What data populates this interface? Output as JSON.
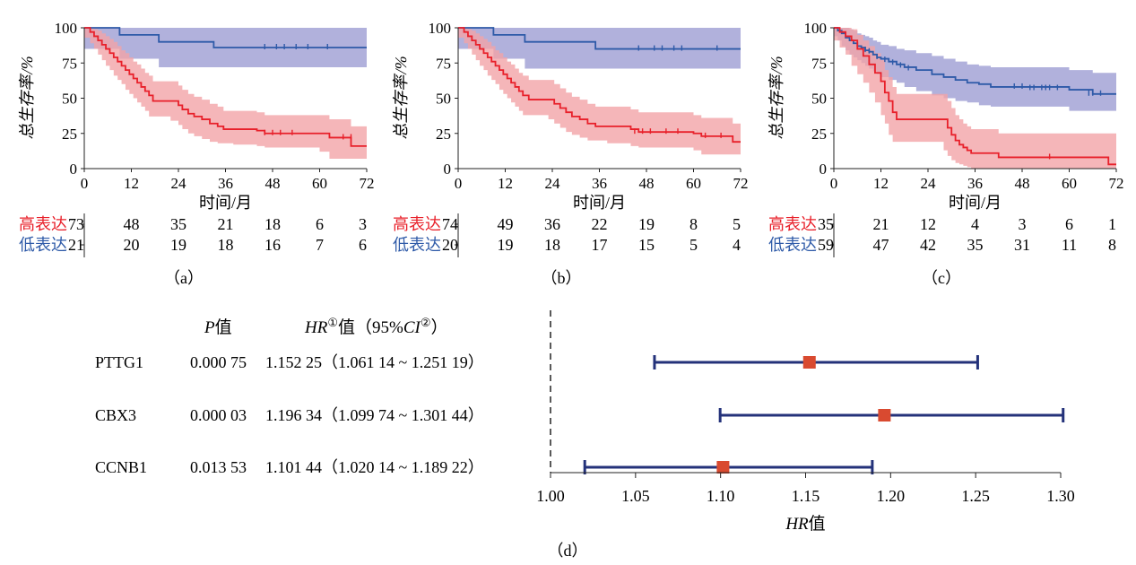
{
  "colors": {
    "high": "#e8202a",
    "high_band": "#f2a4a8",
    "low": "#2e5aa8",
    "low_band": "#a3a3d6",
    "forest_line": "#24327a",
    "forest_point": "#d94a30",
    "axis": "#222222"
  },
  "chart_data": [
    {
      "type": "line",
      "panel_label": "（a）",
      "xlabel": "时间/月",
      "ylabel": "总生存率/%",
      "xlim": [
        0,
        72
      ],
      "ylim": [
        0,
        100
      ],
      "xticks": [
        0,
        12,
        24,
        36,
        48,
        60,
        72
      ],
      "yticks": [
        0,
        25,
        50,
        75,
        100
      ],
      "series": [
        {
          "name": "高表达",
          "color": "high",
          "x": [
            0,
            1.5,
            2.5,
            3.5,
            4.5,
            5.5,
            6.5,
            7.5,
            8.5,
            9.5,
            10.5,
            11.5,
            12.5,
            13.5,
            14.5,
            15.5,
            16.5,
            17.5,
            22,
            24,
            25,
            26.5,
            28,
            30,
            32,
            34,
            35.5,
            38,
            44,
            46,
            60,
            62.5,
            68,
            72
          ],
          "y": [
            100,
            97,
            94,
            91,
            88,
            85,
            82,
            79,
            76,
            73,
            70,
            67,
            64,
            61,
            58,
            55,
            52,
            48,
            48,
            45,
            42,
            39,
            37,
            35,
            32,
            30,
            28,
            28,
            27,
            25,
            25,
            22,
            16,
            16
          ],
          "band_upper": [
            100,
            100,
            99,
            98,
            96,
            94,
            92,
            90,
            87,
            84,
            82,
            79,
            76,
            74,
            71,
            68,
            66,
            62,
            62,
            59,
            56,
            53,
            51,
            49,
            46,
            44,
            41,
            41,
            40,
            38,
            38,
            35,
            30,
            30
          ],
          "band_lower": [
            100,
            93,
            89,
            85,
            81,
            77,
            73,
            70,
            66,
            63,
            60,
            56,
            53,
            50,
            47,
            44,
            41,
            37,
            37,
            34,
            31,
            28,
            25,
            23,
            21,
            19,
            18,
            18,
            17,
            16,
            15,
            12,
            7,
            7
          ],
          "censors": [
            [
              46,
              25
            ],
            [
              48,
              25
            ],
            [
              50,
              25
            ],
            [
              53,
              25
            ],
            [
              66,
              22
            ],
            [
              68,
              22
            ]
          ]
        },
        {
          "name": "低表达",
          "color": "low",
          "x": [
            0,
            9,
            19,
            33,
            72
          ],
          "y": [
            100,
            95,
            90,
            86,
            86
          ],
          "band_upper": [
            100,
            100,
            100,
            100,
            100
          ],
          "band_lower": [
            100,
            85,
            78,
            72,
            72
          ],
          "censors": [
            [
              46,
              86
            ],
            [
              49,
              86
            ],
            [
              51,
              86
            ],
            [
              54,
              86
            ],
            [
              57,
              86
            ],
            [
              62,
              86
            ]
          ]
        }
      ],
      "risk_table": [
        {
          "name": "高表达",
          "color": "high",
          "values": [
            "73",
            "48",
            "35",
            "21",
            "18",
            "6",
            "3"
          ]
        },
        {
          "name": "低表达",
          "color": "low",
          "values": [
            "21",
            "20",
            "19",
            "18",
            "16",
            "7",
            "6"
          ]
        }
      ]
    },
    {
      "type": "line",
      "panel_label": "（b）",
      "xlabel": "时间/月",
      "ylabel": "总生存率/%",
      "xlim": [
        0,
        72
      ],
      "ylim": [
        0,
        100
      ],
      "xticks": [
        0,
        12,
        24,
        36,
        48,
        60,
        72
      ],
      "yticks": [
        0,
        25,
        50,
        75,
        100
      ],
      "series": [
        {
          "name": "高表达",
          "color": "high",
          "x": [
            0,
            1.5,
            2.5,
            3.5,
            4.5,
            5.5,
            6.5,
            7.5,
            8.5,
            9.5,
            10.5,
            11.5,
            12.5,
            13.5,
            14.5,
            15.5,
            16.5,
            18,
            23,
            24.5,
            26,
            27.5,
            29,
            31,
            33,
            35,
            38,
            44,
            46,
            60,
            62,
            70,
            72
          ],
          "y": [
            100,
            97,
            94,
            91,
            88,
            85,
            82,
            79,
            76,
            73,
            70,
            67,
            64,
            61,
            58,
            55,
            52,
            49,
            49,
            46,
            43,
            40,
            37,
            35,
            32,
            30,
            30,
            28,
            26,
            25,
            23,
            19,
            19
          ],
          "band_upper": [
            100,
            100,
            99,
            98,
            96,
            94,
            92,
            90,
            87,
            84,
            82,
            79,
            76,
            74,
            71,
            68,
            66,
            63,
            63,
            60,
            57,
            54,
            51,
            49,
            46,
            44,
            44,
            42,
            40,
            38,
            36,
            32,
            32
          ],
          "band_lower": [
            100,
            93,
            89,
            85,
            81,
            77,
            73,
            70,
            66,
            63,
            60,
            56,
            53,
            50,
            47,
            44,
            41,
            38,
            38,
            35,
            32,
            29,
            26,
            24,
            22,
            20,
            20,
            18,
            16,
            15,
            13,
            10,
            10
          ],
          "censors": [
            [
              45,
              26
            ],
            [
              47,
              26
            ],
            [
              49,
              26
            ],
            [
              53,
              26
            ],
            [
              56,
              26
            ],
            [
              63,
              23
            ],
            [
              67,
              23
            ]
          ]
        },
        {
          "name": "低表达",
          "color": "low",
          "x": [
            0,
            9,
            17,
            35,
            72
          ],
          "y": [
            100,
            95,
            90,
            85,
            85
          ],
          "band_upper": [
            100,
            100,
            100,
            100,
            100
          ],
          "band_lower": [
            100,
            85,
            78,
            71,
            71
          ],
          "censors": [
            [
              46,
              85
            ],
            [
              50,
              85
            ],
            [
              52,
              85
            ],
            [
              55,
              85
            ],
            [
              57,
              85
            ],
            [
              66,
              85
            ]
          ]
        }
      ],
      "risk_table": [
        {
          "name": "高表达",
          "color": "high",
          "values": [
            "74",
            "49",
            "36",
            "22",
            "19",
            "8",
            "5"
          ]
        },
        {
          "name": "低表达",
          "color": "low",
          "values": [
            "20",
            "19",
            "18",
            "17",
            "15",
            "5",
            "4"
          ]
        }
      ]
    },
    {
      "type": "line",
      "panel_label": "（c）",
      "xlabel": "时间/月",
      "ylabel": "总生存率/%",
      "xlim": [
        0,
        72
      ],
      "ylim": [
        0,
        100
      ],
      "xticks": [
        0,
        12,
        24,
        36,
        48,
        60,
        72
      ],
      "yticks": [
        0,
        25,
        50,
        75,
        100
      ],
      "series": [
        {
          "name": "高表达",
          "color": "high",
          "x": [
            0,
            1.5,
            3,
            4.5,
            6,
            7.5,
            9,
            10.5,
            12,
            13,
            14,
            15,
            16,
            28,
            29,
            30,
            31,
            32,
            33,
            34,
            35,
            42,
            60,
            62,
            70,
            72
          ],
          "y": [
            100,
            97,
            94,
            91,
            85,
            80,
            74,
            68,
            62,
            54,
            48,
            40,
            35,
            35,
            29,
            24,
            20,
            17,
            15,
            13,
            11,
            8,
            8,
            8,
            3,
            3
          ],
          "band_upper": [
            100,
            100,
            100,
            99,
            95,
            91,
            87,
            82,
            77,
            70,
            65,
            58,
            53,
            53,
            48,
            43,
            38,
            35,
            32,
            30,
            28,
            25,
            25,
            25,
            25,
            25
          ],
          "band_lower": [
            100,
            91,
            86,
            81,
            73,
            67,
            61,
            54,
            47,
            38,
            32,
            24,
            19,
            19,
            13,
            9,
            6,
            4,
            3,
            2,
            1,
            0,
            0,
            0,
            0,
            0
          ],
          "censors": [
            [
              55,
              8
            ]
          ]
        },
        {
          "name": "低表达",
          "color": "low",
          "x": [
            0,
            1,
            2,
            3,
            4,
            5,
            6,
            7,
            8,
            9,
            10,
            11,
            12,
            14,
            16,
            18,
            21,
            25,
            28,
            31,
            34,
            37,
            40,
            60,
            66,
            72
          ],
          "y": [
            100,
            98,
            96,
            93,
            91,
            89,
            87,
            86,
            84,
            83,
            81,
            79,
            78,
            76,
            74,
            72,
            70,
            67,
            65,
            63,
            61,
            60,
            58,
            56,
            53,
            53
          ],
          "band_upper": [
            100,
            100,
            100,
            100,
            99,
            98,
            96,
            95,
            94,
            93,
            91,
            90,
            88,
            87,
            85,
            84,
            82,
            80,
            78,
            76,
            74,
            73,
            72,
            70,
            68,
            68
          ],
          "band_lower": [
            100,
            94,
            91,
            87,
            84,
            81,
            79,
            77,
            75,
            73,
            71,
            69,
            67,
            65,
            63,
            61,
            58,
            55,
            52,
            50,
            48,
            47,
            45,
            44,
            41,
            41
          ],
          "censors": [
            [
              8,
              84
            ],
            [
              9,
              83
            ],
            [
              11,
              79
            ],
            [
              13,
              77
            ],
            [
              15,
              75
            ],
            [
              17,
              73
            ],
            [
              19,
              71
            ],
            [
              46,
              58
            ],
            [
              48,
              58
            ],
            [
              50,
              57
            ],
            [
              51,
              57
            ],
            [
              53,
              57
            ],
            [
              54,
              57
            ],
            [
              55,
              57
            ],
            [
              57,
              57
            ],
            [
              65,
              53
            ],
            [
              66,
              53
            ],
            [
              68,
              53
            ]
          ]
        }
      ],
      "risk_table": [
        {
          "name": "高表达",
          "color": "high",
          "values": [
            "35",
            "21",
            "12",
            "4",
            "3",
            "6",
            "1"
          ]
        },
        {
          "name": "低表达",
          "color": "low",
          "values": [
            "59",
            "47",
            "42",
            "35",
            "31",
            "11",
            "8"
          ]
        }
      ]
    },
    {
      "type": "scatter",
      "panel_label": "（d）",
      "xlabel_italic": "HR",
      "xlabel_suffix": "值",
      "xlim": [
        1.0,
        1.3
      ],
      "xticks": [
        "1.00",
        "1.05",
        "1.10",
        "1.15",
        "1.20",
        "1.25",
        "1.30"
      ],
      "reference_x": 1.0,
      "header_p_italic": "P",
      "header_p_suffix": "值",
      "header_hr_italic": "HR",
      "header_hr_sup1": "①",
      "header_hr_mid": "值（95%",
      "header_hr_ci_italic": "CI",
      "header_hr_sup2": "②",
      "header_hr_end": "）",
      "rows": [
        {
          "gene": "PTTG1",
          "p": "0.000 75",
          "hr_text": "1.152 25（1.061 14 ~ 1.251 19）",
          "hr": 1.15225,
          "lower": 1.06114,
          "upper": 1.25119
        },
        {
          "gene": "CBX3",
          "p": "0.000 03",
          "hr_text": "1.196 34（1.099 74 ~ 1.301 44）",
          "hr": 1.19634,
          "lower": 1.09974,
          "upper": 1.30144
        },
        {
          "gene": "CCNB1",
          "p": "0.013 53",
          "hr_text": "1.101 44（1.020 14 ~ 1.189 22）",
          "hr": 1.10144,
          "lower": 1.02014,
          "upper": 1.18922
        }
      ]
    }
  ]
}
